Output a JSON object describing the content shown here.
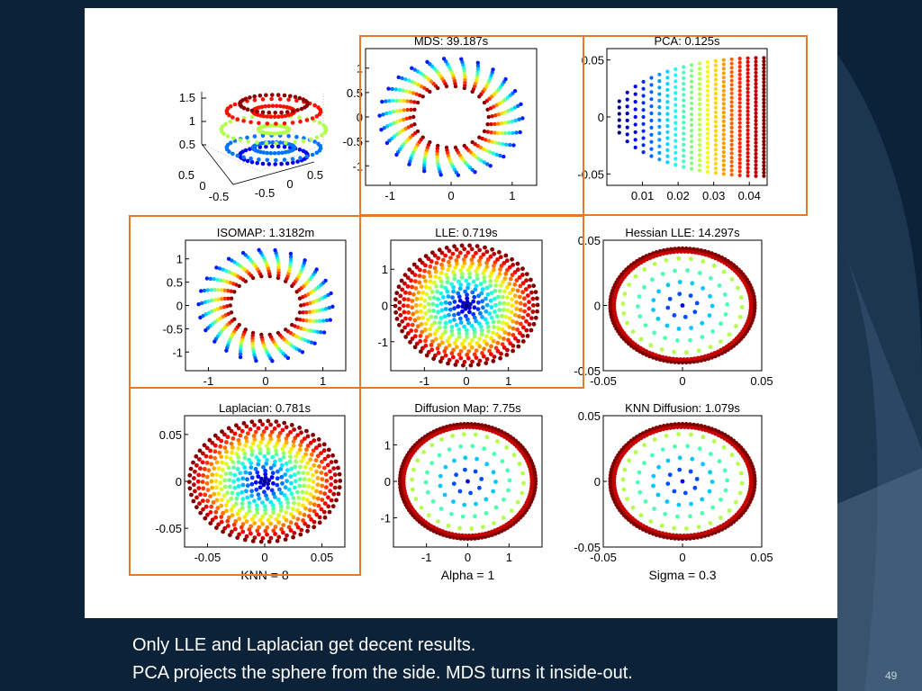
{
  "slide": {
    "caption_line1": "Only LLE and Laplacian get decent results.",
    "caption_line2": "PCA projects the sphere from the side.  MDS turns it inside-out.",
    "page_number": "49",
    "highlight_color": "#e8792b"
  },
  "chart_data": [
    {
      "id": "original",
      "type": "scatter3d",
      "shape": "torus",
      "title": "",
      "z_ticks": [
        "1.5",
        "1",
        "0.5"
      ],
      "x_ticks": [
        "0.5",
        "0",
        "-0.5"
      ],
      "y_ticks": [
        "-0.5",
        "0",
        "0.5"
      ],
      "xlabel": "",
      "colormap": "jet",
      "highlighted": false
    },
    {
      "id": "mds",
      "type": "scatter",
      "shape": "petal-ring",
      "title": "MDS: 39.187s",
      "xlim": [
        -1.4,
        1.4
      ],
      "ylim": [
        -1.4,
        1.4
      ],
      "x_ticks": [
        -1,
        0,
        1
      ],
      "y_ticks": [
        1,
        0.5,
        0,
        -0.5,
        -1
      ],
      "xlabel": "",
      "colormap": "jet",
      "highlighted": true
    },
    {
      "id": "pca",
      "type": "scatter",
      "shape": "half-disk",
      "title": "PCA: 0.125s",
      "xlim": [
        0,
        0.045
      ],
      "ylim": [
        -0.06,
        0.06
      ],
      "x_ticks": [
        0.01,
        0.02,
        0.03,
        0.04
      ],
      "y_ticks": [
        0.05,
        0,
        -0.05
      ],
      "xlabel": "",
      "colormap": "jet",
      "highlighted": true
    },
    {
      "id": "isomap",
      "type": "scatter",
      "shape": "petal-ring",
      "title": "ISOMAP: 1.3182m",
      "xlim": [
        -1.4,
        1.4
      ],
      "ylim": [
        -1.4,
        1.4
      ],
      "x_ticks": [
        -1,
        0,
        1
      ],
      "y_ticks": [
        1,
        0.5,
        0,
        -0.5,
        -1
      ],
      "xlabel": "",
      "colormap": "jet",
      "highlighted": true
    },
    {
      "id": "lle",
      "type": "scatter",
      "shape": "disk",
      "title": "LLE: 0.719s",
      "xlim": [
        -1.8,
        1.8
      ],
      "ylim": [
        -1.8,
        1.8
      ],
      "x_ticks": [
        -1,
        0,
        1
      ],
      "y_ticks": [
        1,
        0,
        -1
      ],
      "xlabel": "",
      "colormap": "jet",
      "highlighted": true
    },
    {
      "id": "hessian",
      "type": "scatter",
      "shape": "rim-disk",
      "title": "Hessian LLE: 14.297s",
      "xlim": [
        -0.05,
        0.05
      ],
      "ylim": [
        -0.05,
        0.05
      ],
      "x_ticks": [
        -0.05,
        0,
        0.05
      ],
      "y_ticks": [
        0.05,
        0,
        -0.05
      ],
      "xlabel": "",
      "colormap": "jet",
      "highlighted": false
    },
    {
      "id": "laplacian",
      "type": "scatter",
      "shape": "disk",
      "title": "Laplacian: 0.781s",
      "xlim": [
        -0.07,
        0.07
      ],
      "ylim": [
        -0.07,
        0.07
      ],
      "x_ticks": [
        -0.05,
        0,
        0.05
      ],
      "y_ticks": [
        0.05,
        0,
        -0.05
      ],
      "xlabel": "KNN = 8",
      "colormap": "jet",
      "highlighted": true
    },
    {
      "id": "diffusion",
      "type": "scatter",
      "shape": "rim-disk",
      "title": "Diffusion Map: 7.75s",
      "xlim": [
        -1.8,
        1.8
      ],
      "ylim": [
        -1.8,
        1.8
      ],
      "x_ticks": [
        -1,
        0,
        1
      ],
      "y_ticks": [
        1,
        0,
        -1
      ],
      "xlabel": "Alpha = 1",
      "colormap": "jet",
      "highlighted": false
    },
    {
      "id": "knndiff",
      "type": "scatter",
      "shape": "rim-disk",
      "title": "KNN Diffusion: 1.079s",
      "xlim": [
        -0.05,
        0.05
      ],
      "ylim": [
        -0.05,
        0.05
      ],
      "x_ticks": [
        -0.05,
        0,
        0.05
      ],
      "y_ticks": [
        0.05,
        0,
        -0.05
      ],
      "xlabel": "Sigma = 0.3",
      "colormap": "jet",
      "highlighted": false
    }
  ]
}
